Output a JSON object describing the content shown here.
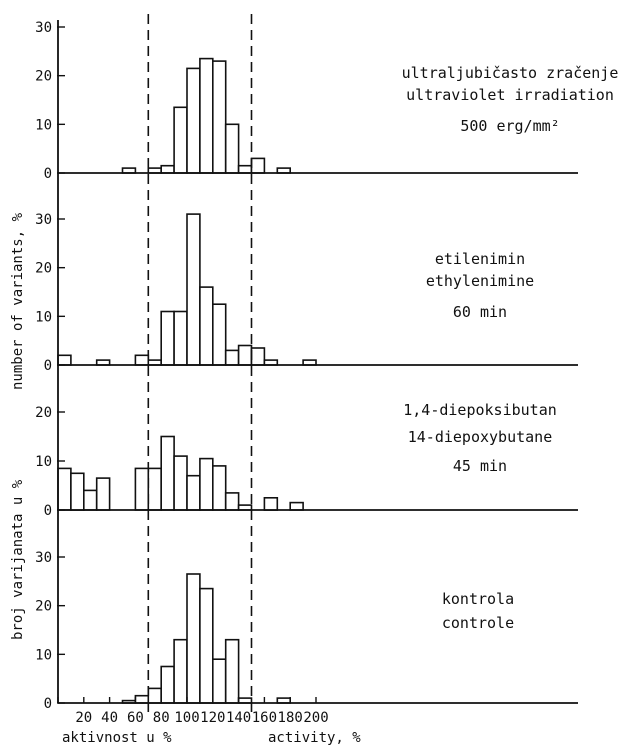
{
  "chart_data": [
    {
      "type": "bar",
      "label_lines": [
        "ultraljubičasto zračenje",
        "ultraviolet irradiation",
        "500 erg/mm²"
      ],
      "x": [
        55,
        75,
        85,
        95,
        105,
        115,
        125,
        135,
        145,
        155,
        175
      ],
      "values": [
        1,
        1,
        1.5,
        13.5,
        21.5,
        23.5,
        23,
        10,
        1.5,
        3,
        1
      ],
      "ylim": [
        0,
        30
      ],
      "yticks": [
        0,
        10,
        20,
        30
      ]
    },
    {
      "type": "bar",
      "label_lines": [
        "etilenimin",
        "ethylenimine",
        "60 min"
      ],
      "x": [
        5,
        35,
        65,
        75,
        85,
        95,
        105,
        115,
        125,
        135,
        145,
        155,
        165,
        195
      ],
      "values": [
        2,
        1,
        2,
        1,
        11,
        11,
        31,
        16,
        12.5,
        3,
        4,
        3.5,
        1,
        1
      ],
      "ylim": [
        0,
        30
      ],
      "yticks": [
        0,
        10,
        20,
        30
      ]
    },
    {
      "type": "bar",
      "label_lines": [
        "1,4-diepoksibutan",
        "14-diepoxybutane",
        "45 min"
      ],
      "x": [
        5,
        15,
        25,
        35,
        65,
        75,
        85,
        95,
        105,
        115,
        125,
        135,
        145,
        165,
        185
      ],
      "values": [
        8.5,
        7.5,
        4,
        6.5,
        8.5,
        8.5,
        15,
        11,
        7,
        10.5,
        9,
        3.5,
        1,
        2.5,
        1.5
      ],
      "ylim": [
        0,
        20
      ],
      "yticks": [
        0,
        10,
        20
      ]
    },
    {
      "type": "bar",
      "label_lines": [
        "kontrola",
        "controle"
      ],
      "x": [
        55,
        65,
        75,
        85,
        95,
        105,
        115,
        125,
        135,
        145,
        175
      ],
      "values": [
        0.5,
        1.5,
        3,
        7.5,
        13,
        26.5,
        23.5,
        9,
        13,
        1,
        1
      ],
      "ylim": [
        0,
        30
      ],
      "yticks": [
        0,
        10,
        20,
        30
      ]
    }
  ],
  "axes": {
    "xticks": [
      0,
      20,
      40,
      60,
      80,
      100,
      120,
      140,
      160,
      180,
      200
    ],
    "xlabel_left": "aktivnost u %",
    "xlabel_right": "activity, %",
    "ylabel_local": "broj varijanata u %",
    "ylabel_english": "number of variants, %",
    "reference_lines": [
      70,
      150
    ]
  }
}
